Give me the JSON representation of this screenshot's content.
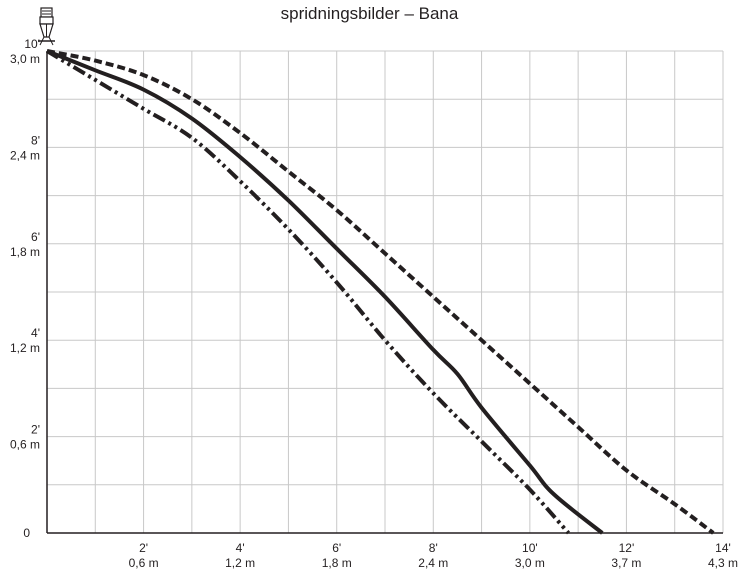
{
  "chart_data": {
    "type": "line",
    "title": "spridningsbilder – Bana",
    "xlabel": "",
    "ylabel": "",
    "xlim": [
      0,
      14
    ],
    "ylim": [
      0,
      10
    ],
    "x_ticks": [
      {
        "value": 2,
        "ft": "2'",
        "m": "0,6 m"
      },
      {
        "value": 4,
        "ft": "4'",
        "m": "1,2 m"
      },
      {
        "value": 6,
        "ft": "6'",
        "m": "1,8 m"
      },
      {
        "value": 8,
        "ft": "8'",
        "m": "2,4 m"
      },
      {
        "value": 10,
        "ft": "10'",
        "m": "3,0 m"
      },
      {
        "value": 12,
        "ft": "12'",
        "m": "3,7 m"
      },
      {
        "value": 14,
        "ft": "14'",
        "m": "4,3 m"
      }
    ],
    "y_ticks": [
      {
        "value": 0,
        "ft": "0",
        "m": ""
      },
      {
        "value": 2,
        "ft": "2'",
        "m": "0,6 m"
      },
      {
        "value": 4,
        "ft": "4'",
        "m": "1,2 m"
      },
      {
        "value": 6,
        "ft": "6'",
        "m": "1,8 m"
      },
      {
        "value": 8,
        "ft": "8'",
        "m": "2,4 m"
      },
      {
        "value": 10,
        "ft": "10'",
        "m": "3,0 m"
      }
    ],
    "grid": true,
    "series": [
      {
        "style": "dashed",
        "color": "#231f20",
        "points": [
          [
            0,
            10
          ],
          [
            1,
            9.8
          ],
          [
            2,
            9.5
          ],
          [
            3,
            9.0
          ],
          [
            4,
            8.3
          ],
          [
            5,
            7.5
          ],
          [
            6,
            6.7
          ],
          [
            7,
            5.8
          ],
          [
            8,
            4.9
          ],
          [
            9,
            4.0
          ],
          [
            10,
            3.1
          ],
          [
            11,
            2.2
          ],
          [
            12,
            1.3
          ],
          [
            13,
            0.6
          ],
          [
            13.8,
            0
          ]
        ]
      },
      {
        "style": "solid",
        "color": "#231f20",
        "points": [
          [
            0,
            10
          ],
          [
            1,
            9.6
          ],
          [
            2,
            9.2
          ],
          [
            3,
            8.6
          ],
          [
            4,
            7.8
          ],
          [
            5,
            6.9
          ],
          [
            6,
            5.9
          ],
          [
            7,
            4.9
          ],
          [
            8,
            3.8
          ],
          [
            8.5,
            3.3
          ],
          [
            9,
            2.6
          ],
          [
            10,
            1.4
          ],
          [
            10.5,
            0.8
          ],
          [
            11.5,
            0
          ]
        ]
      },
      {
        "style": "dash-dot-dot",
        "color": "#231f20",
        "points": [
          [
            0,
            10
          ],
          [
            1,
            9.4
          ],
          [
            2,
            8.8
          ],
          [
            3,
            8.2
          ],
          [
            4,
            7.3
          ],
          [
            5,
            6.3
          ],
          [
            6,
            5.2
          ],
          [
            7,
            4.0
          ],
          [
            8,
            2.9
          ],
          [
            9,
            1.9
          ],
          [
            10,
            0.9
          ],
          [
            10.8,
            0
          ]
        ]
      }
    ]
  }
}
